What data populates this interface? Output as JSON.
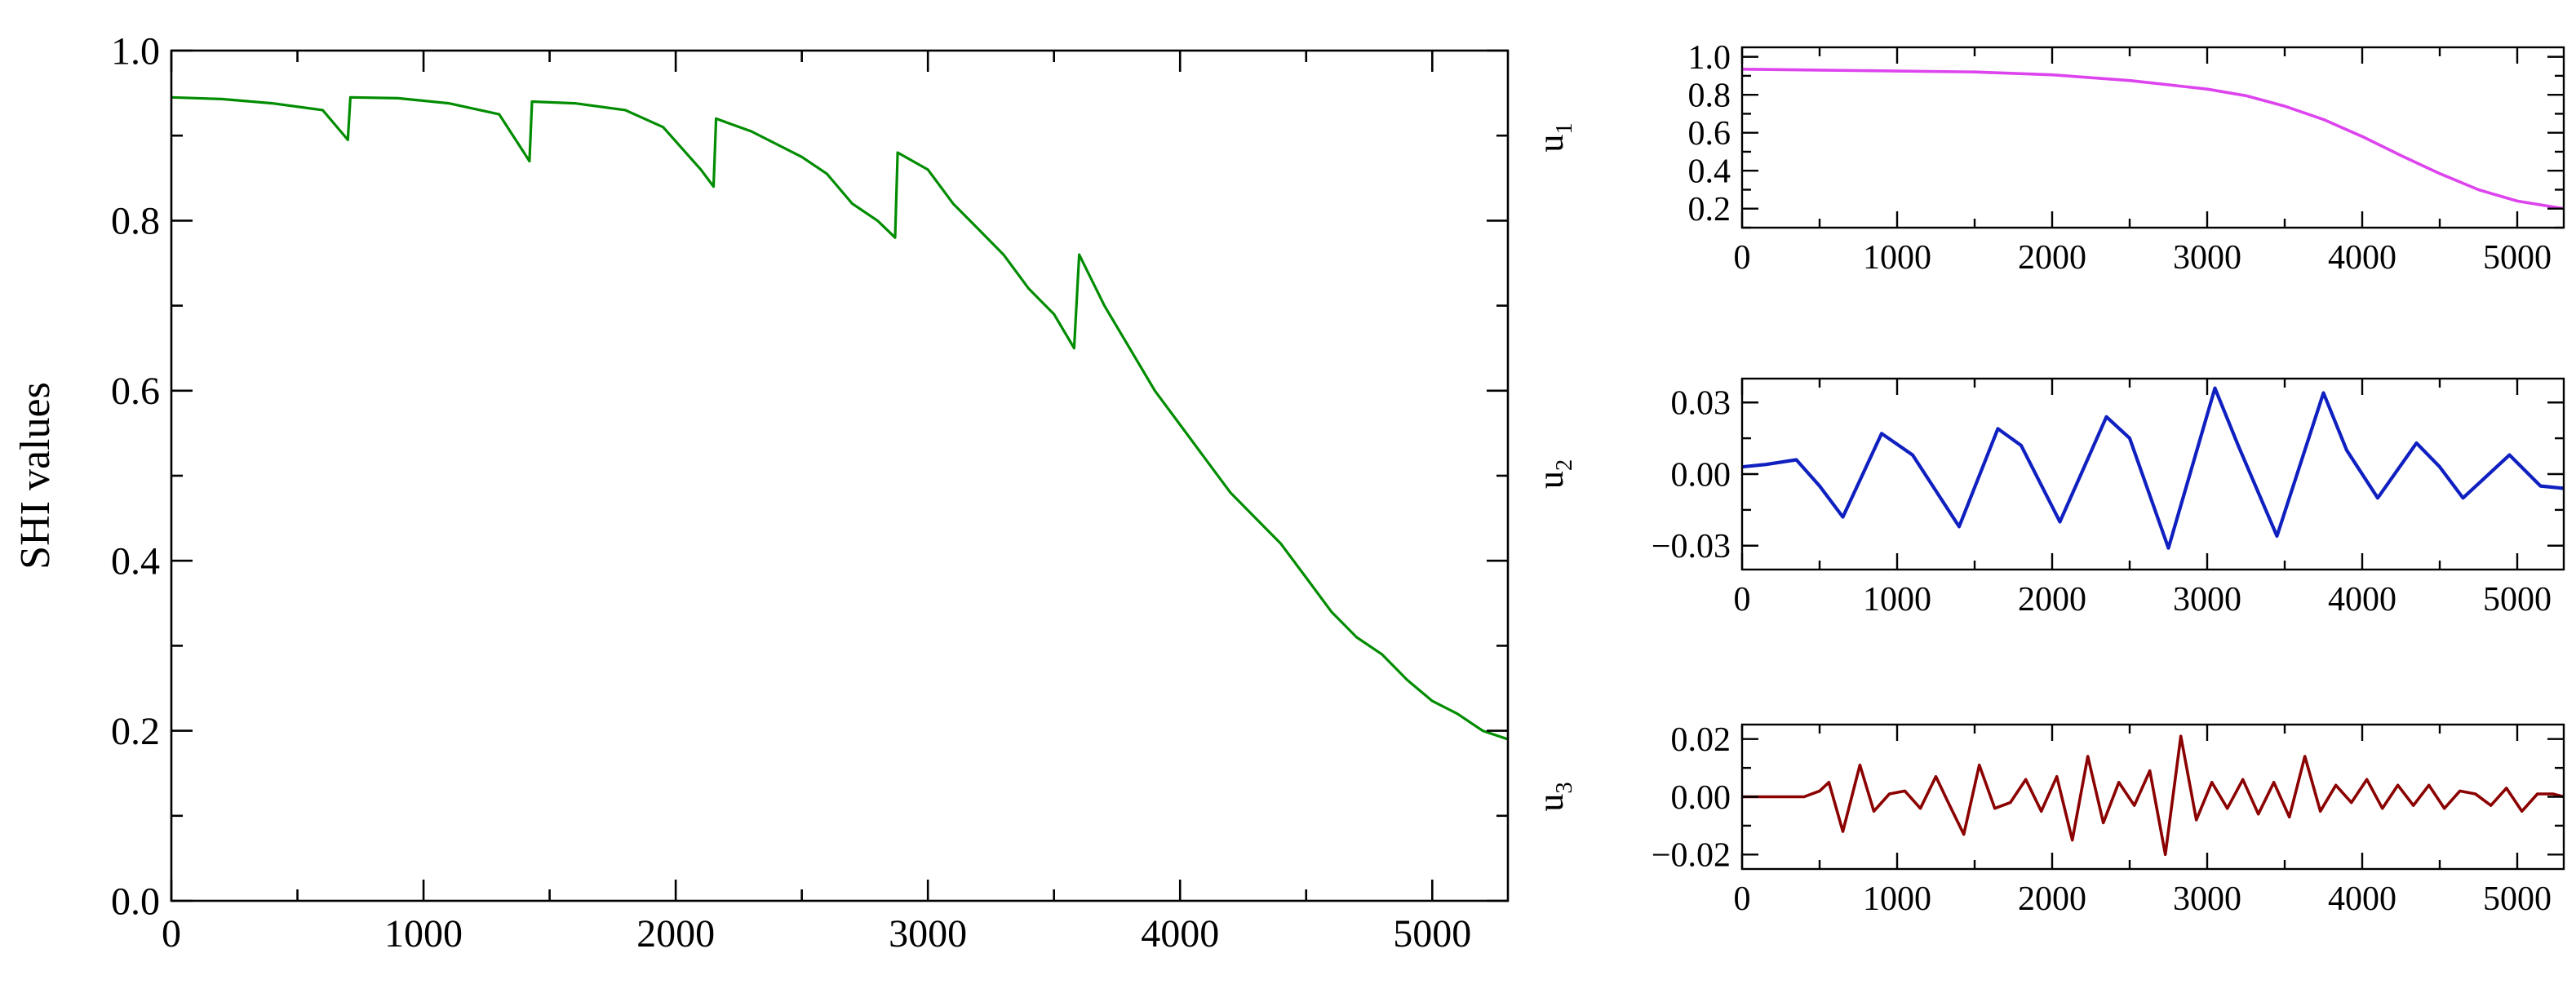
{
  "chart_data": [
    {
      "id": "main",
      "type": "line",
      "title": "",
      "xlabel": "",
      "ylabel": "SHI values",
      "xlim": [
        0,
        5300
      ],
      "ylim": [
        0.0,
        1.0
      ],
      "xticks": [
        0,
        1000,
        2000,
        3000,
        4000,
        5000
      ],
      "xtick_labels": [
        "0",
        "1000",
        "2000",
        "3000",
        "4000",
        "5000"
      ],
      "yticks": [
        0.0,
        0.2,
        0.4,
        0.6,
        0.8,
        1.0
      ],
      "ytick_labels": [
        "0.0",
        "0.2",
        "0.4",
        "0.6",
        "0.8",
        "1.0"
      ],
      "grid": false,
      "color": "#008c00",
      "series": [
        {
          "x": [
            0,
            200,
            400,
            600,
            700,
            710,
            900,
            1100,
            1300,
            1420,
            1430,
            1600,
            1800,
            1950,
            2100,
            2150,
            2160,
            2300,
            2500,
            2600,
            2700,
            2800,
            2870,
            2880,
            3000,
            3100,
            3200,
            3300,
            3400,
            3500,
            3580,
            3600,
            3700,
            3800,
            3900,
            4000,
            4100,
            4200,
            4300,
            4400,
            4500,
            4600,
            4700,
            4800,
            4900,
            5000,
            5100,
            5200,
            5300
          ],
          "y": [
            0.945,
            0.943,
            0.938,
            0.93,
            0.895,
            0.945,
            0.944,
            0.938,
            0.925,
            0.87,
            0.94,
            0.938,
            0.93,
            0.91,
            0.86,
            0.84,
            0.92,
            0.905,
            0.875,
            0.855,
            0.82,
            0.8,
            0.78,
            0.88,
            0.86,
            0.82,
            0.79,
            0.76,
            0.72,
            0.69,
            0.65,
            0.76,
            0.7,
            0.65,
            0.6,
            0.56,
            0.52,
            0.48,
            0.45,
            0.42,
            0.38,
            0.34,
            0.31,
            0.29,
            0.26,
            0.235,
            0.22,
            0.2,
            0.19
          ]
        }
      ]
    },
    {
      "id": "u1",
      "type": "line",
      "title": "",
      "xlabel": "",
      "ylabel_main": "u",
      "ylabel_sub": "1",
      "xlim": [
        0,
        5300
      ],
      "ylim": [
        0.1,
        1.05
      ],
      "xticks": [
        0,
        1000,
        2000,
        3000,
        4000,
        5000
      ],
      "xtick_labels": [
        "0",
        "1000",
        "2000",
        "3000",
        "4000",
        "5000"
      ],
      "yticks": [
        0.2,
        0.4,
        0.6,
        0.8,
        1.0
      ],
      "ytick_labels": [
        "0.2",
        "0.4",
        "0.6",
        "0.8",
        "1.0"
      ],
      "grid": false,
      "color": "#dd44ee",
      "series": [
        {
          "x": [
            0,
            500,
            1000,
            1500,
            2000,
            2500,
            3000,
            3250,
            3500,
            3750,
            4000,
            4250,
            4500,
            4750,
            5000,
            5300
          ],
          "y": [
            0.935,
            0.93,
            0.925,
            0.92,
            0.905,
            0.875,
            0.83,
            0.795,
            0.74,
            0.67,
            0.58,
            0.48,
            0.385,
            0.3,
            0.24,
            0.2
          ]
        }
      ]
    },
    {
      "id": "u2",
      "type": "line",
      "title": "",
      "xlabel": "",
      "ylabel_main": "u",
      "ylabel_sub": "2",
      "xlim": [
        0,
        5300
      ],
      "ylim": [
        -0.04,
        0.04
      ],
      "xticks": [
        0,
        1000,
        2000,
        3000,
        4000,
        5000
      ],
      "xtick_labels": [
        "0",
        "1000",
        "2000",
        "3000",
        "4000",
        "5000"
      ],
      "yticks": [
        -0.03,
        0.0,
        0.03
      ],
      "ytick_labels": [
        "−0.03",
        "0.00",
        "0.03"
      ],
      "grid": false,
      "color": "#1020c0",
      "series": [
        {
          "x": [
            0,
            150,
            350,
            500,
            650,
            900,
            1100,
            1400,
            1650,
            1800,
            2050,
            2350,
            2500,
            2750,
            3050,
            3200,
            3450,
            3750,
            3900,
            4100,
            4350,
            4500,
            4650,
            4950,
            5150,
            5300
          ],
          "y": [
            0.003,
            0.004,
            0.006,
            -0.005,
            -0.018,
            0.017,
            0.008,
            -0.022,
            0.019,
            0.012,
            -0.02,
            0.024,
            0.015,
            -0.031,
            0.036,
            0.012,
            -0.026,
            0.034,
            0.01,
            -0.01,
            0.013,
            0.003,
            -0.01,
            0.008,
            -0.005,
            -0.006
          ]
        }
      ]
    },
    {
      "id": "u3",
      "type": "line",
      "title": "",
      "xlabel": "",
      "ylabel_main": "u",
      "ylabel_sub": "3",
      "xlim": [
        0,
        5300
      ],
      "ylim": [
        -0.025,
        0.025
      ],
      "xticks": [
        0,
        1000,
        2000,
        3000,
        4000,
        5000
      ],
      "xtick_labels": [
        "0",
        "1000",
        "2000",
        "3000",
        "4000",
        "5000"
      ],
      "yticks": [
        -0.02,
        0.0,
        0.02
      ],
      "ytick_labels": [
        "−0.02",
        "0.00",
        "0.02"
      ],
      "grid": false,
      "color": "#8b0000",
      "series": [
        {
          "x": [
            0,
            200,
            400,
            500,
            560,
            650,
            760,
            850,
            950,
            1050,
            1150,
            1250,
            1330,
            1430,
            1530,
            1630,
            1730,
            1830,
            1930,
            2030,
            2130,
            2230,
            2330,
            2430,
            2530,
            2630,
            2730,
            2830,
            2930,
            3030,
            3130,
            3230,
            3330,
            3430,
            3530,
            3630,
            3730,
            3830,
            3930,
            4030,
            4130,
            4230,
            4330,
            4430,
            4530,
            4630,
            4730,
            4830,
            4930,
            5030,
            5130,
            5230,
            5300
          ],
          "y": [
            0.0,
            0.0,
            0.0,
            0.002,
            0.005,
            -0.012,
            0.011,
            -0.005,
            0.001,
            0.002,
            -0.004,
            0.007,
            -0.002,
            -0.013,
            0.011,
            -0.004,
            -0.002,
            0.006,
            -0.005,
            0.007,
            -0.015,
            0.014,
            -0.009,
            0.005,
            -0.003,
            0.009,
            -0.02,
            0.021,
            -0.008,
            0.005,
            -0.004,
            0.006,
            -0.006,
            0.005,
            -0.007,
            0.014,
            -0.005,
            0.004,
            -0.002,
            0.006,
            -0.004,
            0.004,
            -0.003,
            0.004,
            -0.004,
            0.002,
            0.001,
            -0.003,
            0.003,
            -0.005,
            0.001,
            0.001,
            0.0
          ]
        }
      ]
    }
  ]
}
